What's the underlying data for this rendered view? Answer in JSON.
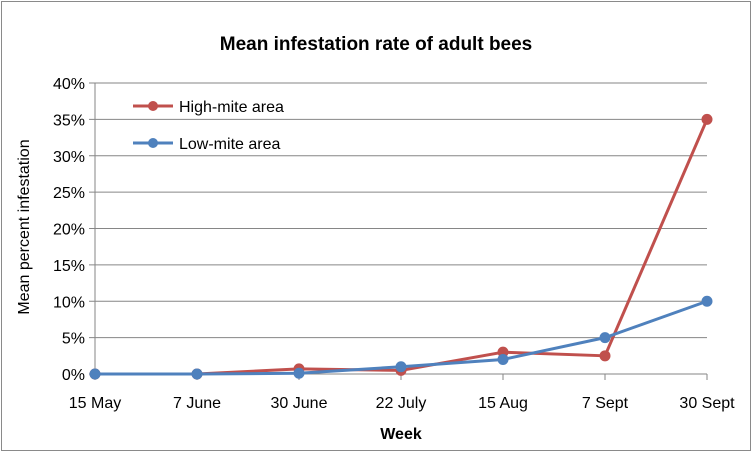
{
  "chart_data": {
    "type": "line",
    "title": "Mean infestation rate of adult bees",
    "xlabel": "Week",
    "ylabel": "Mean percent infestation",
    "categories": [
      "15 May",
      "7 June",
      "30 June",
      "22 July",
      "15 Aug",
      "7 Sept",
      "30 Sept"
    ],
    "yticks": [
      "0%",
      "5%",
      "10%",
      "15%",
      "20%",
      "25%",
      "30%",
      "35%",
      "40%"
    ],
    "ylim": [
      0,
      40
    ],
    "grid": true,
    "legend_position": "top-left",
    "series": [
      {
        "name": "High-mite area",
        "color": "#c0504d",
        "values": [
          0,
          0,
          0.7,
          0.5,
          3.0,
          2.5,
          35.0
        ]
      },
      {
        "name": "Low-mite area",
        "color": "#4f81bd",
        "values": [
          0,
          0,
          0.1,
          1.0,
          2.0,
          5.0,
          10.0
        ]
      }
    ]
  }
}
